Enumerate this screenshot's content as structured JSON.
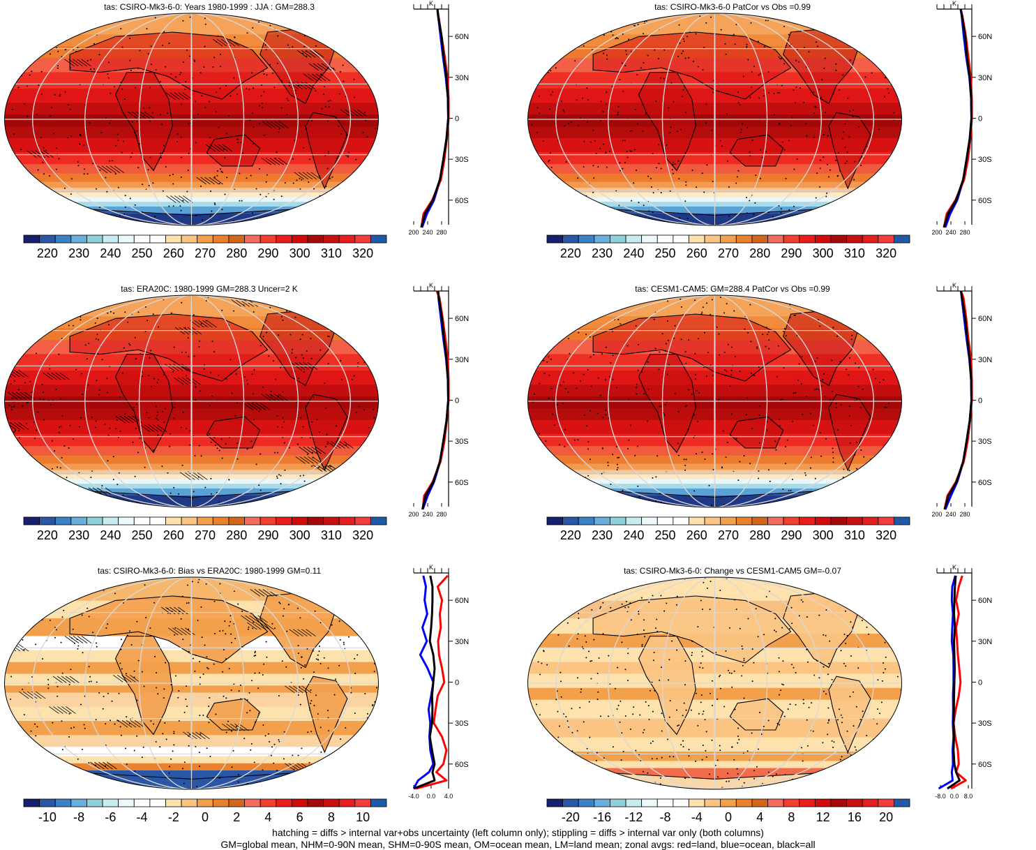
{
  "panels": [
    {
      "id": "p1",
      "title": "tas: CSIRO-Mk3-6-0: Years 1980-1999 : JJA : GM=288.3",
      "kind": "abs",
      "hatch": true,
      "scale": "abs",
      "profile": {
        "xticks": [
          "200",
          "240",
          "280"
        ],
        "xmin": 200,
        "xmax": 300,
        "unit": "K"
      }
    },
    {
      "id": "p2",
      "title": "tas: CSIRO-Mk3-6-0 PatCor vs Obs =0.99",
      "kind": "abs",
      "hatch": false,
      "scale": "abs",
      "profile": {
        "xticks": [
          "200",
          "240",
          "280"
        ],
        "xmin": 200,
        "xmax": 300,
        "unit": "K"
      }
    },
    {
      "id": "p3",
      "title": "tas: ERA20C: 1980-1999 GM=288.3 Uncer=2 K",
      "kind": "abs",
      "hatch": true,
      "scale": "abs",
      "profile": {
        "xticks": [
          "200",
          "240",
          "280"
        ],
        "xmin": 200,
        "xmax": 300,
        "unit": "K"
      }
    },
    {
      "id": "p4",
      "title": "tas: CESM1-CAM5: GM=288.4 PatCor vs Obs =0.99",
      "kind": "abs",
      "hatch": false,
      "scale": "abs",
      "profile": {
        "xticks": [
          "200",
          "240",
          "280"
        ],
        "xmin": 200,
        "xmax": 300,
        "unit": "K"
      }
    },
    {
      "id": "p5",
      "title": "tas: CSIRO-Mk3-6-0: Bias vs ERA20C: 1980-1999 GM=0.11",
      "kind": "bias",
      "hatch": true,
      "scale": "bias",
      "profile": {
        "xticks": [
          "-4.0",
          "0.0",
          "4.0"
        ],
        "xmin": -4,
        "xmax": 4,
        "unit": "K"
      }
    },
    {
      "id": "p6",
      "title": "tas: CSIRO-Mk3-6-0: Change vs CESM1-CAM5 GM=-0.07",
      "kind": "change",
      "hatch": false,
      "scale": "change",
      "profile": {
        "xticks": [
          "-8.0",
          "0.0",
          "8.0"
        ],
        "xmin": -10,
        "xmax": 10,
        "unit": "K"
      }
    }
  ],
  "lat_labels": [
    "60N",
    "30N",
    "0",
    "30S",
    "60S"
  ],
  "colorbars": {
    "abs": {
      "labels": [
        "220",
        "230",
        "240",
        "250",
        "260",
        "270",
        "280",
        "290",
        "300",
        "310",
        "320"
      ]
    },
    "bias": {
      "labels": [
        "-10",
        "-8",
        "-6",
        "-4",
        "-2",
        "0",
        "2",
        "4",
        "6",
        "8",
        "10"
      ]
    },
    "change": {
      "labels": [
        "-20",
        "-16",
        "-12",
        "-8",
        "-4",
        "0",
        "4",
        "8",
        "12",
        "16",
        "20"
      ]
    }
  },
  "colors": {
    "ramp": [
      "#17206f",
      "#2a57a5",
      "#3b82c4",
      "#6aaede",
      "#90d0d8",
      "#c6ecf0",
      "#eef9fb",
      "#ffffff",
      "#ffffff",
      "#fde2ae",
      "#fbc483",
      "#f3a04c",
      "#e9822f",
      "#d2671c",
      "#f56b5f",
      "#f0402f",
      "#ec1c1c",
      "#d10a0a",
      "#a40808",
      "#c81010",
      "#e61e1e",
      "#f33d3d",
      "#1f5aa8"
    ],
    "zonal_land": "#ff0000",
    "zonal_ocean": "#0000ff",
    "zonal_all": "#000000"
  },
  "chart_data": [
    {
      "type": "heatmap",
      "title": "tas: CSIRO-Mk3-6-0: Years 1980-1999 : JJA : GM=288.3",
      "units": "K",
      "colorbar_range": [
        215,
        325
      ],
      "zonal_profile": {
        "lat": [
          -80,
          -70,
          -60,
          -45,
          -30,
          -15,
          0,
          15,
          30,
          45,
          60,
          75,
          80
        ],
        "all": [
          222,
          232,
          255,
          275,
          285,
          294,
          299,
          298,
          294,
          286,
          280,
          270,
          268
        ],
        "land": [
          222,
          228,
          253,
          278,
          288,
          295,
          300,
          300,
          297,
          289,
          280,
          271,
          268
        ],
        "ocean": [
          224,
          238,
          258,
          276,
          285,
          294,
          299,
          298,
          292,
          284,
          277,
          270,
          268
        ]
      }
    },
    {
      "type": "heatmap",
      "title": "tas: CSIRO-Mk3-6-0 PatCor vs Obs =0.99",
      "units": "K",
      "colorbar_range": [
        215,
        325
      ],
      "zonal_profile": {
        "lat": [
          -80,
          -70,
          -60,
          -45,
          -30,
          -15,
          0,
          15,
          30,
          45,
          60,
          75,
          80
        ],
        "all": [
          220,
          232,
          255,
          275,
          285,
          294,
          299,
          298,
          294,
          286,
          281,
          272,
          268
        ],
        "land": [
          220,
          228,
          253,
          278,
          289,
          296,
          300,
          300,
          297,
          290,
          283,
          273,
          268
        ],
        "ocean": [
          224,
          238,
          258,
          276,
          285,
          294,
          299,
          298,
          293,
          284,
          277,
          271,
          268
        ]
      }
    },
    {
      "type": "heatmap",
      "title": "tas: ERA20C: 1980-1999 GM=288.3 Uncer=2 K",
      "units": "K",
      "colorbar_range": [
        215,
        325
      ],
      "zonal_profile": {
        "lat": [
          -80,
          -70,
          -60,
          -45,
          -30,
          -15,
          0,
          15,
          30,
          45,
          60,
          75,
          80
        ],
        "all": [
          225,
          234,
          256,
          275,
          285,
          294,
          299,
          298,
          294,
          287,
          281,
          272,
          270
        ],
        "land": [
          226,
          230,
          254,
          277,
          288,
          295,
          300,
          300,
          298,
          291,
          283,
          274,
          266
        ],
        "ocean": [
          226,
          240,
          258,
          276,
          285,
          294,
          299,
          298,
          293,
          285,
          278,
          271,
          270
        ]
      }
    },
    {
      "type": "heatmap",
      "title": "tas: CESM1-CAM5: GM=288.4 PatCor vs Obs =0.99",
      "units": "K",
      "colorbar_range": [
        215,
        325
      ],
      "zonal_profile": {
        "lat": [
          -80,
          -70,
          -60,
          -45,
          -30,
          -15,
          0,
          15,
          30,
          45,
          60,
          75,
          80
        ],
        "all": [
          222,
          233,
          256,
          275,
          285,
          294,
          299,
          298,
          294,
          287,
          281,
          272,
          269
        ],
        "land": [
          222,
          230,
          254,
          277,
          288,
          295,
          300,
          300,
          298,
          290,
          284,
          276,
          269
        ],
        "ocean": [
          224,
          240,
          258,
          276,
          285,
          294,
          299,
          298,
          293,
          285,
          278,
          271,
          269
        ]
      }
    },
    {
      "type": "heatmap",
      "title": "tas: CSIRO-Mk3-6-0: Bias vs ERA20C: 1980-1999 GM=0.11",
      "units": "K",
      "colorbar_range": [
        -11,
        11
      ],
      "zonal_profile": {
        "lat": [
          -78,
          -72,
          -66,
          -60,
          -50,
          -40,
          -30,
          -20,
          -10,
          0,
          10,
          20,
          30,
          40,
          50,
          60,
          70,
          78
        ],
        "all": [
          -4,
          0.8,
          0.3,
          0.8,
          0.2,
          -0.3,
          0.2,
          0.3,
          0.2,
          0.5,
          0.8,
          0.5,
          -0.3,
          0.0,
          0.2,
          0.3,
          0.3,
          -0.2
        ],
        "land": [
          -3.5,
          3.5,
          1.2,
          2.8,
          3.5,
          2.5,
          0.6,
          1.0,
          1.5,
          3.0,
          2.5,
          1.8,
          1.6,
          2.2,
          2.0,
          2.5,
          1.5,
          3.8
        ],
        "ocean": [
          -4,
          -3.0,
          -0.5,
          0.5,
          -0.2,
          -0.4,
          -0.2,
          -0.6,
          0.0,
          0.5,
          -0.8,
          -2.5,
          -1.0,
          -2.0,
          -0.9,
          -1.5,
          -1.2,
          -1.8
        ]
      }
    },
    {
      "type": "heatmap",
      "title": "tas: CSIRO-Mk3-6-0: Change vs CESM1-CAM5 GM=-0.07",
      "units": "K",
      "colorbar_range": [
        -22,
        22
      ],
      "zonal_profile": {
        "lat": [
          -78,
          -72,
          -66,
          -60,
          -50,
          -40,
          -30,
          -20,
          -10,
          0,
          10,
          20,
          30,
          40,
          50,
          60,
          70,
          78
        ],
        "all": [
          -4,
          3.0,
          1.0,
          0.0,
          -0.5,
          -0.2,
          -0.5,
          -0.3,
          -0.2,
          0.0,
          0.2,
          0.0,
          -0.2,
          0.3,
          -0.2,
          0.0,
          0.3,
          0.8
        ],
        "land": [
          -2,
          6.5,
          1.0,
          2.5,
          2.0,
          0.5,
          -0.5,
          0.8,
          2.5,
          3.5,
          2.8,
          2.0,
          1.5,
          1.0,
          2.5,
          1.0,
          2.5,
          4.5
        ],
        "ocean": [
          -9,
          -1.0,
          -1.5,
          -0.8,
          -1.0,
          -0.5,
          -0.9,
          -0.7,
          -0.8,
          -0.5,
          -0.5,
          -0.6,
          -1.5,
          -1.2,
          -0.8,
          -1.5,
          -1.2,
          0.5
        ]
      }
    }
  ],
  "footer": {
    "line1": "hatching = diffs > internal var+obs uncertainty (left column only); stippling = diffs > internal var only (both columns)",
    "line2": "GM=global mean, NHM=0-90N mean, SHM=0-90S mean, OM=ocean mean, LM=land mean; zonal avgs: red=land, blue=ocean, black=all"
  }
}
